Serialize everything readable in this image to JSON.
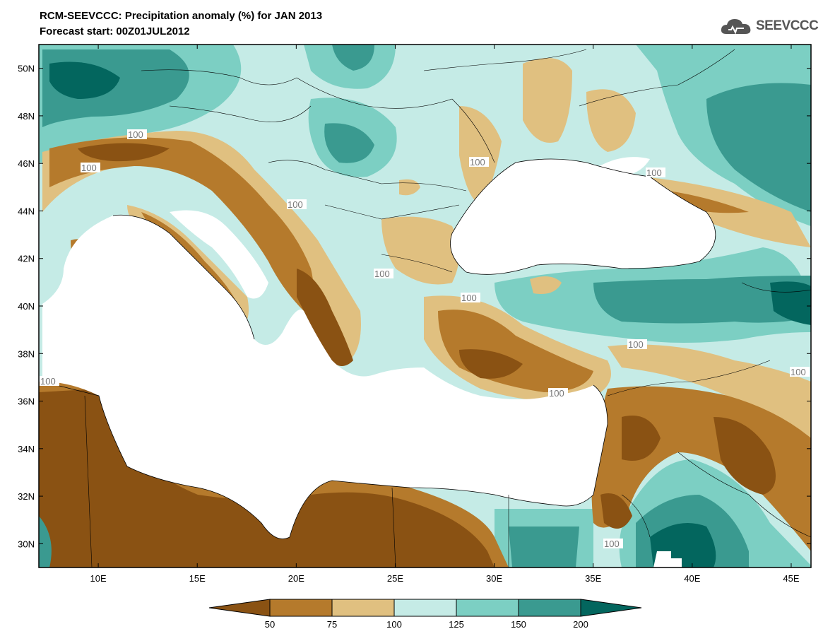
{
  "header": {
    "title": "RCM-SEEVCCC: Precipitation anomaly (%) for JAN 2013",
    "forecast_start": "Forecast start: 00Z01JUL2012"
  },
  "logo": {
    "text": "SEEVCCC",
    "icon": "cloud-icon"
  },
  "map": {
    "lon_range": [
      7,
      46
    ],
    "lat_range": [
      29,
      51
    ],
    "lon_ticks": [
      "10E",
      "15E",
      "20E",
      "25E",
      "30E",
      "35E",
      "40E",
      "45E"
    ],
    "lat_ticks": [
      "50N",
      "48N",
      "46N",
      "44N",
      "42N",
      "40N",
      "38N",
      "36N",
      "34N",
      "32N",
      "30N"
    ],
    "contour_labels": [
      "100",
      "100",
      "100",
      "100",
      "100",
      "100",
      "100",
      "100",
      "100",
      "100",
      "100",
      "100"
    ]
  },
  "legend": {
    "thresholds": [
      "50",
      "75",
      "100",
      "125",
      "150",
      "200"
    ],
    "colors": [
      "#8a5213",
      "#b57a2c",
      "#e0c080",
      "#c5ebe6",
      "#7ccfc3",
      "#3a9a90",
      "#03665e"
    ]
  }
}
